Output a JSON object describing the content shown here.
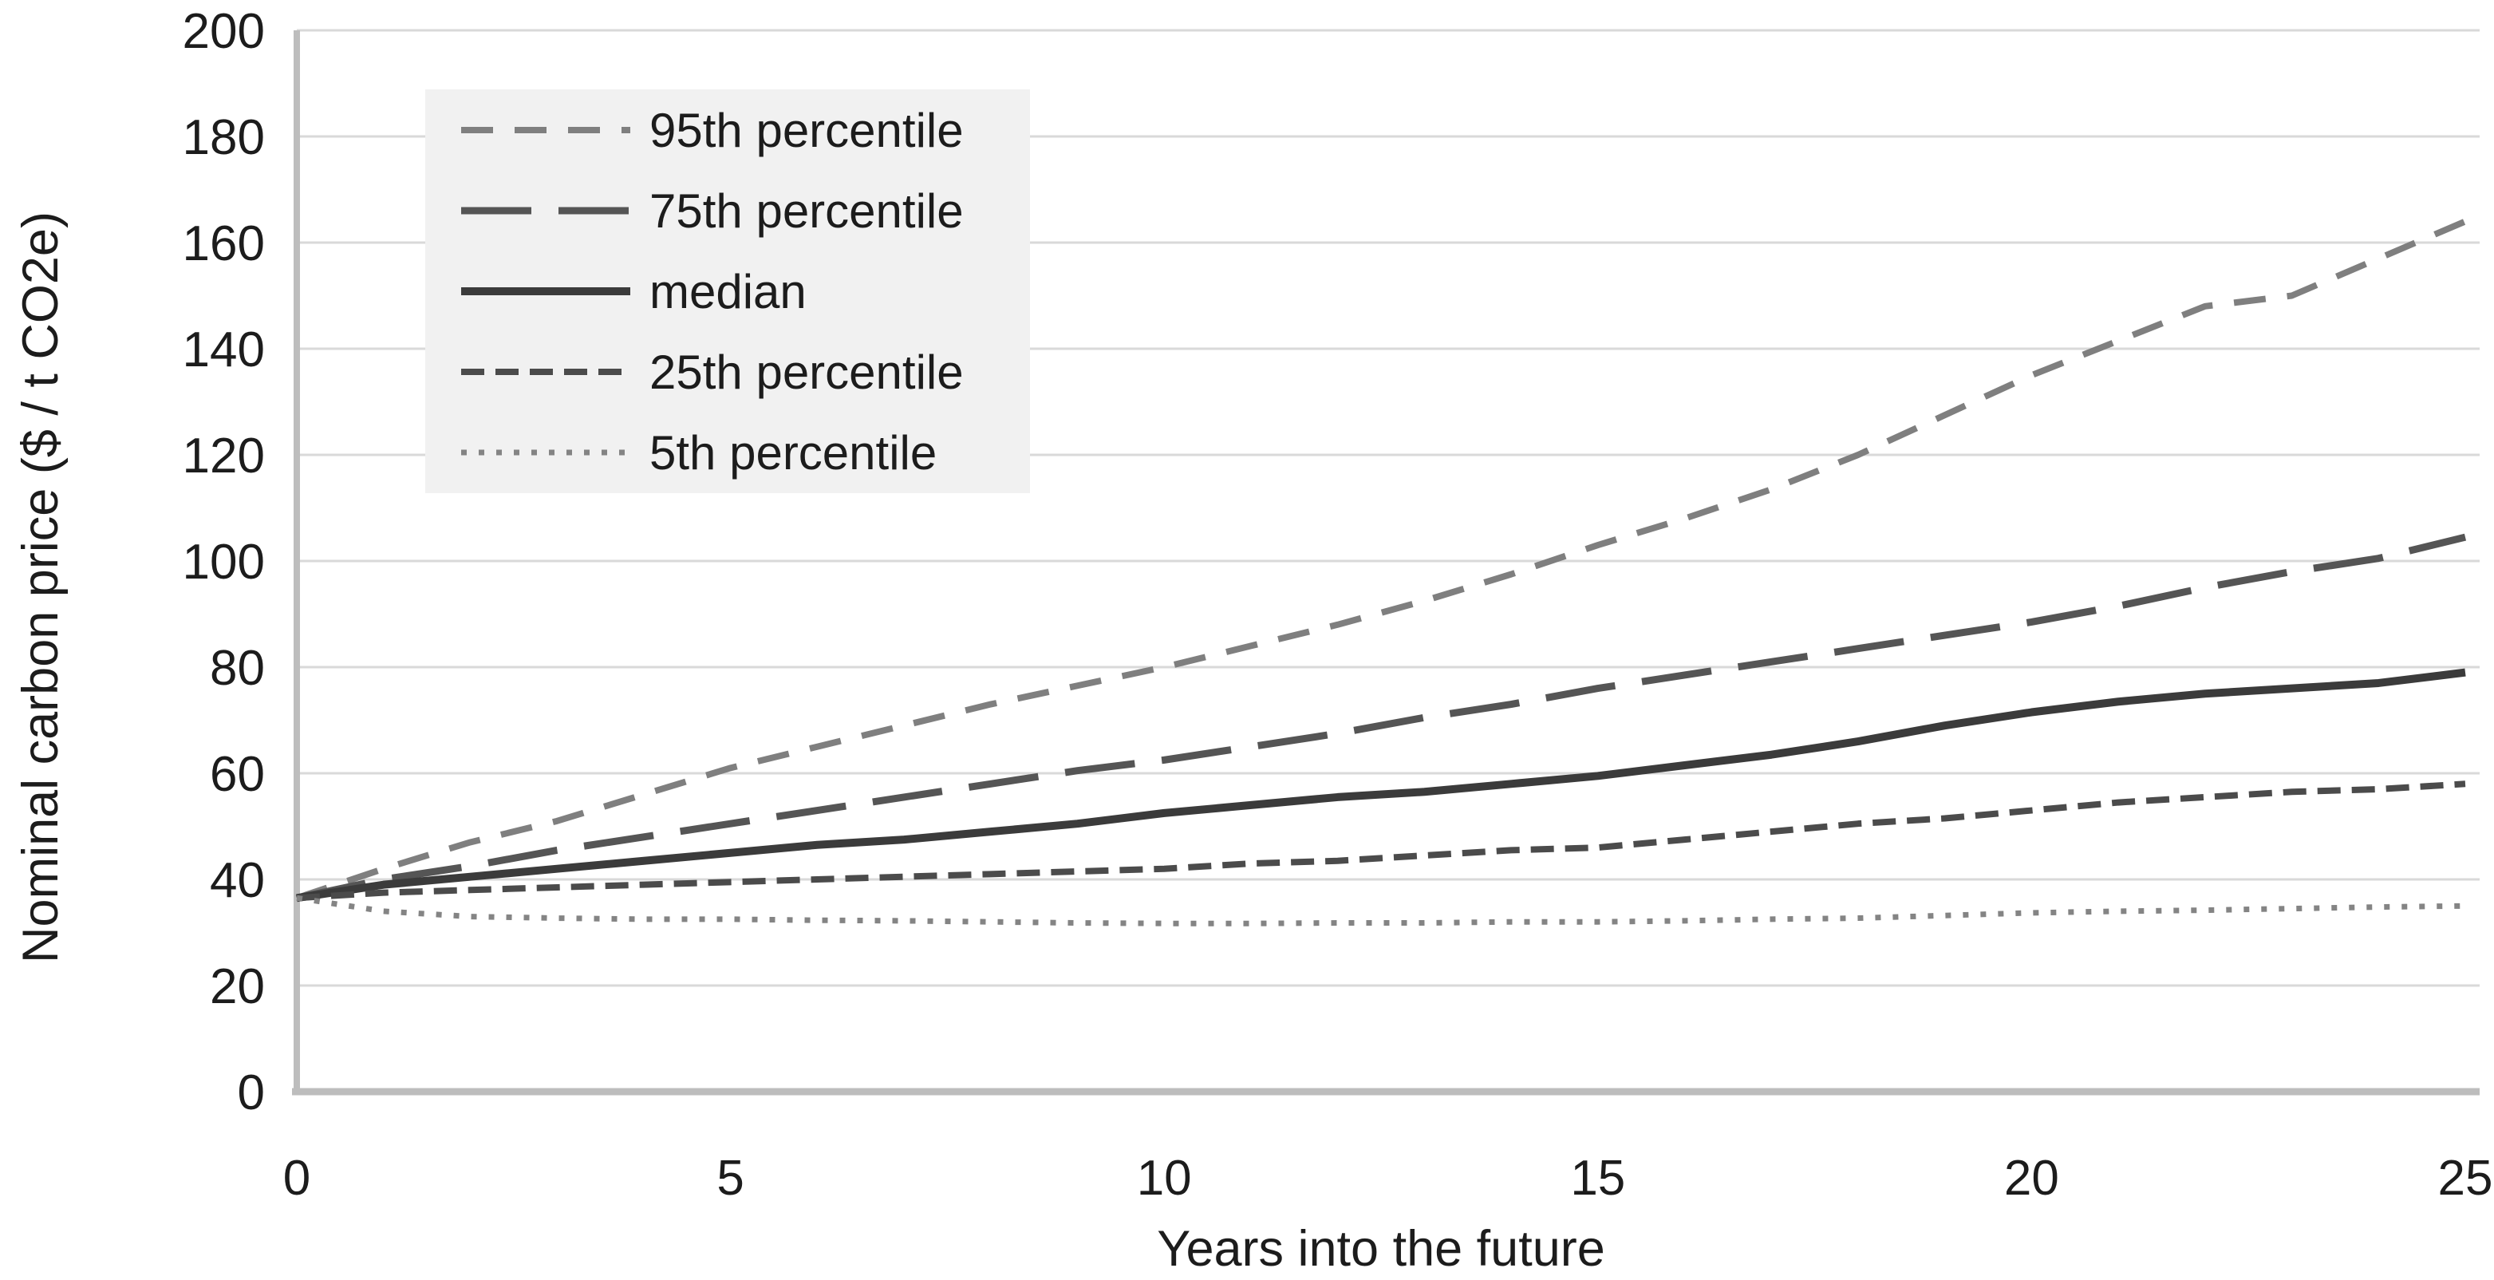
{
  "page": {
    "background": "#ffffff"
  },
  "chart_data": {
    "type": "line",
    "x": [
      0,
      1,
      2,
      3,
      4,
      5,
      6,
      7,
      8,
      9,
      10,
      11,
      12,
      13,
      14,
      15,
      16,
      17,
      18,
      19,
      20,
      21,
      22,
      23,
      24,
      25
    ],
    "xlabel": "Years into the future",
    "ylabel": "Nominal carbon price ($ / t CO2e)",
    "xlim": [
      0,
      25
    ],
    "ylim": [
      0,
      200
    ],
    "xticks": [
      0,
      5,
      10,
      15,
      20,
      25
    ],
    "yticks": [
      0,
      20,
      40,
      60,
      80,
      100,
      120,
      140,
      160,
      180,
      200
    ],
    "grid": "horizontal",
    "gridline_color": "#d9d9d9",
    "axis_color": "#bdbdbd",
    "text_color": "#1c1c1c",
    "legend_position": "top-left",
    "legend_fill": "#f1f1f1",
    "series": [
      {
        "name": "95th percentile",
        "color": "#7f7f7f",
        "dash": "40 27",
        "width": 8,
        "values": [
          36.5,
          42,
          47,
          51,
          56,
          61,
          65,
          69,
          73,
          76.5,
          80,
          84,
          88,
          92.5,
          97.5,
          103,
          108,
          113.5,
          120,
          127.5,
          135,
          141.5,
          148,
          150,
          157,
          164
        ]
      },
      {
        "name": "75th percentile",
        "color": "#555555",
        "dash": "88 34",
        "width": 9,
        "values": [
          36.5,
          40,
          42.5,
          45.5,
          48,
          50.5,
          53,
          55.5,
          58,
          60.5,
          62.5,
          65,
          67.5,
          70.5,
          73,
          76,
          78.5,
          81,
          83.5,
          86,
          88.5,
          91.5,
          95,
          98,
          100.5,
          104.5
        ]
      },
      {
        "name": "median",
        "color": "#3b3b3b",
        "dash": "",
        "width": 10,
        "values": [
          36.5,
          39,
          40.5,
          42,
          43.5,
          45,
          46.5,
          47.5,
          49,
          50.5,
          52.5,
          54,
          55.5,
          56.5,
          58,
          59.5,
          61.5,
          63.5,
          66,
          69,
          71.5,
          73.5,
          75,
          76,
          77,
          79
        ]
      },
      {
        "name": "25th percentile",
        "color": "#4b4b4b",
        "dash": "29 14",
        "width": 8,
        "values": [
          36.5,
          37.5,
          38,
          38.5,
          39,
          39.5,
          40,
          40.5,
          41,
          41.5,
          42,
          43,
          43.5,
          44.5,
          45.5,
          46,
          47.5,
          49,
          50.5,
          51.5,
          53,
          54.5,
          55.5,
          56.5,
          57,
          58
        ]
      },
      {
        "name": "5th percentile",
        "color": "#848484",
        "dash": "7 15",
        "width": 7,
        "values": [
          36.5,
          34,
          33,
          32.7,
          32.5,
          32.5,
          32.3,
          32.2,
          32,
          31.8,
          31.7,
          31.7,
          31.8,
          31.8,
          32,
          32,
          32.2,
          32.5,
          32.7,
          33.2,
          33.7,
          34,
          34.2,
          34.5,
          34.8,
          35
        ]
      }
    ]
  }
}
